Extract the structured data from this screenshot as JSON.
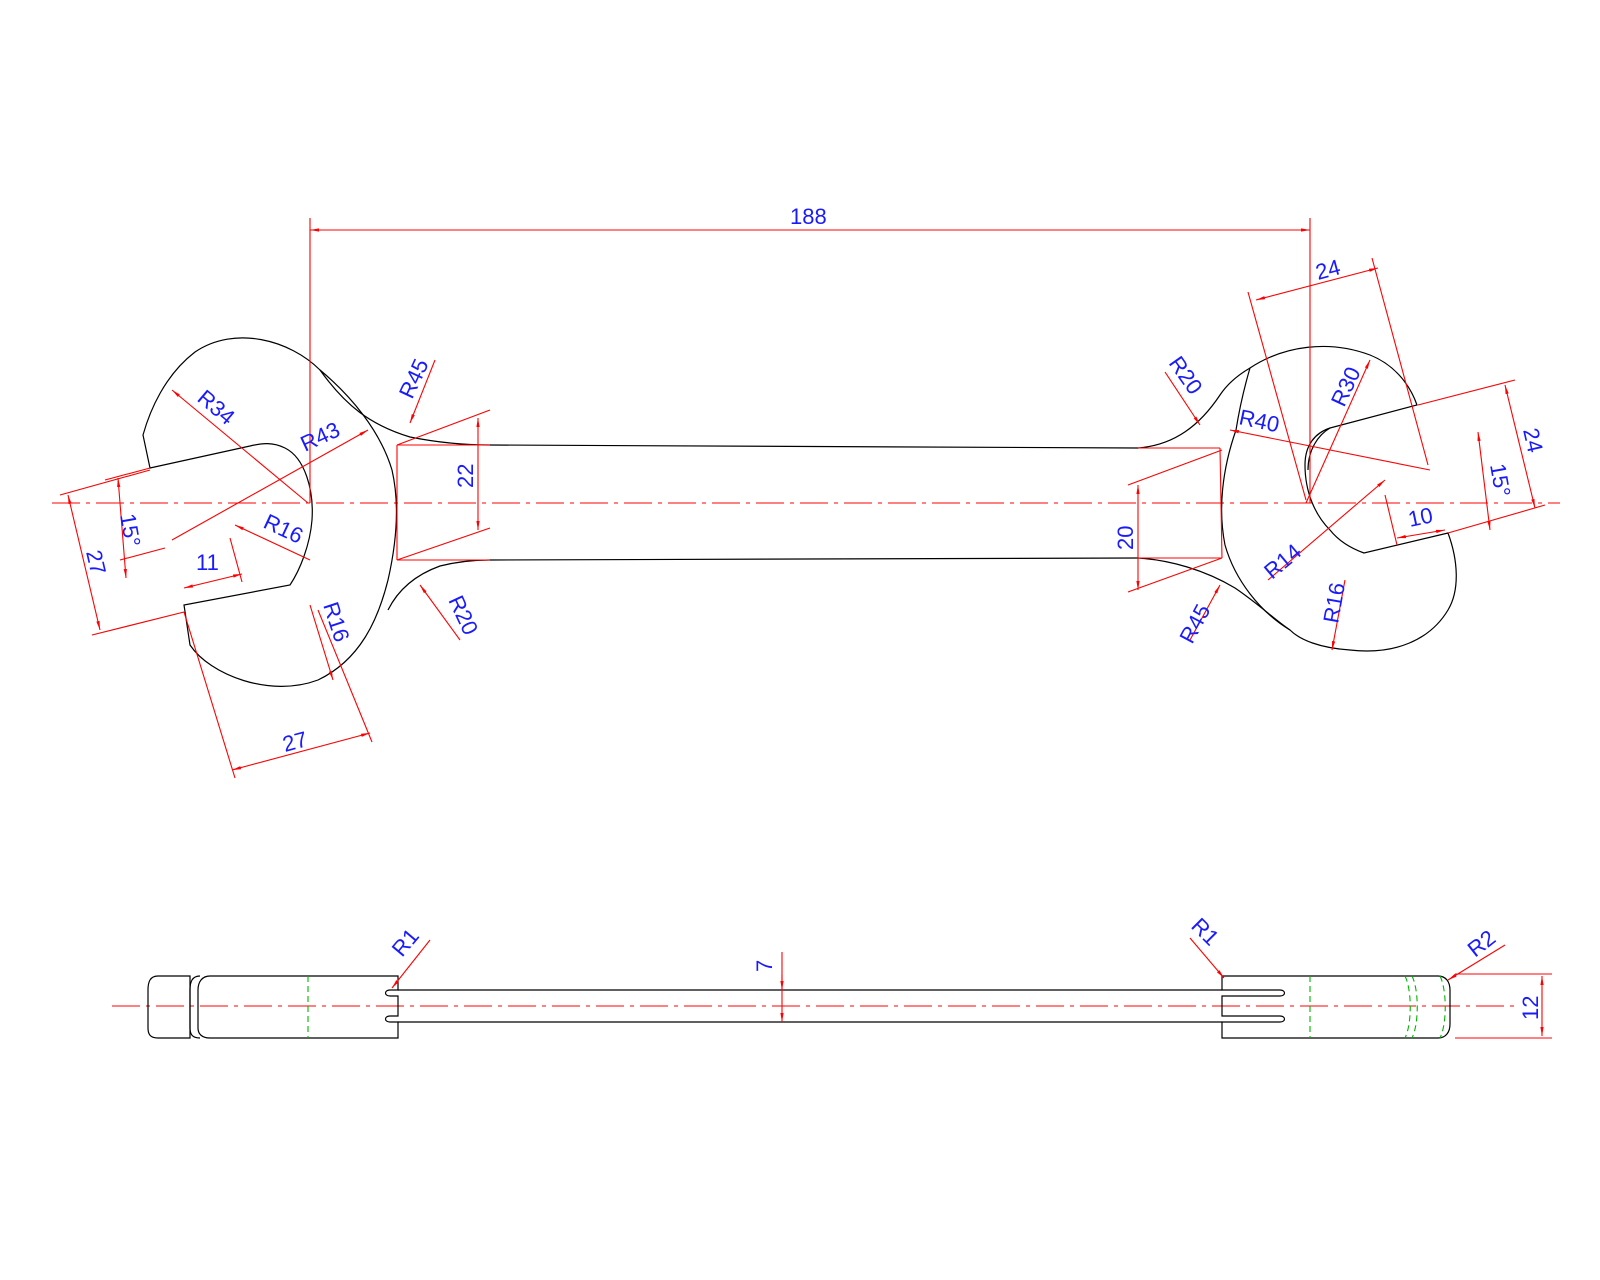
{
  "colors": {
    "background": "#ffffff",
    "outline": "#000000",
    "dimension": "#ff0000",
    "text": "#1a1aff",
    "hidden": "#00b400"
  },
  "labels": {
    "len_188": "188",
    "jaw_right_24": "24",
    "jaw_right_r30": "R30",
    "jaw_right_r40": "R40",
    "jaw_right_h24": "24",
    "jaw_right_15": "15°",
    "jaw_right_10": "10",
    "jaw_right_r14": "R14",
    "jaw_right_r16": "R16",
    "neck_right_r20": "R20",
    "neck_right_r45": "R45",
    "neck_right_20": "20",
    "jaw_left_r34": "R34",
    "jaw_left_r43": "R43",
    "jaw_left_r16": "R16",
    "jaw_left_15": "15°",
    "jaw_left_27v": "27",
    "jaw_left_11": "11",
    "jaw_left_r16b": "R16",
    "jaw_left_27": "27",
    "neck_left_r45": "R45",
    "neck_left_r20": "R20",
    "neck_left_22": "22",
    "side_r1_left": "R1",
    "side_r1_right": "R1",
    "side_r2": "R2",
    "side_7": "7",
    "side_12": "12"
  }
}
